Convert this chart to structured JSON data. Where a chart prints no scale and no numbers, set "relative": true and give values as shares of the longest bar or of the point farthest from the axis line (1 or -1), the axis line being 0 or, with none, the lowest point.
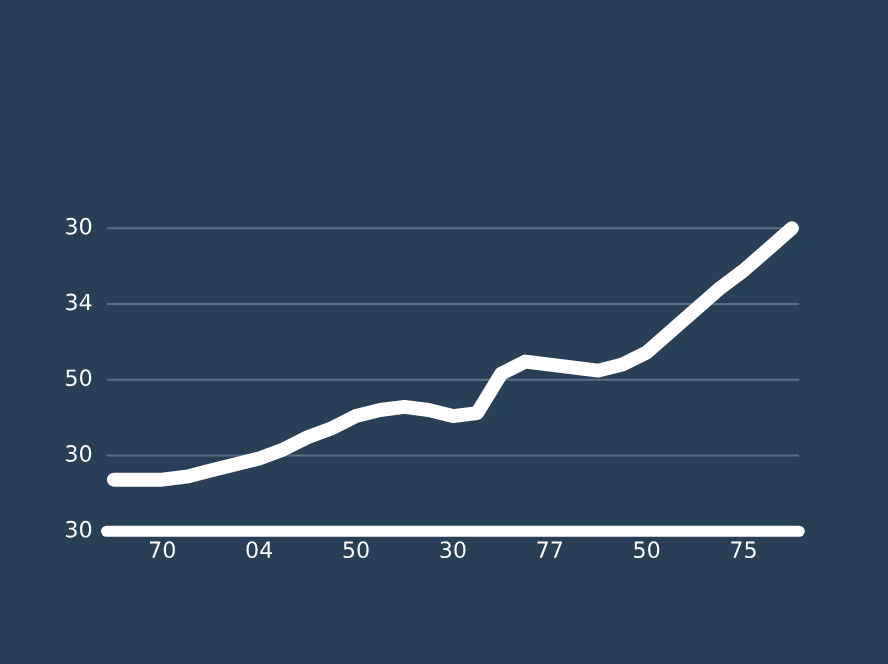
{
  "chart_data": {
    "type": "line",
    "relative": true,
    "categories": [
      null,
      null,
      "70",
      null,
      null,
      null,
      "04",
      null,
      null,
      null,
      "50",
      null,
      null,
      null,
      "30",
      null,
      null,
      null,
      "77",
      null,
      null,
      null,
      "50",
      null,
      null,
      null,
      "75",
      null,
      null
    ],
    "series": [
      {
        "color": "#ffffff",
        "values": [
          0.17,
          0.17,
          0.17,
          0.18,
          0.2,
          0.22,
          0.24,
          0.27,
          0.31,
          0.34,
          0.38,
          0.4,
          0.41,
          0.4,
          0.38,
          0.39,
          0.52,
          0.56,
          0.55,
          0.54,
          0.53,
          0.55,
          0.59,
          0.66,
          0.73,
          0.8,
          0.86,
          0.93,
          1
        ]
      }
    ],
    "ref_lines": [
      {
        "axis": "y",
        "value": 1,
        "color": "#5a7086"
      },
      {
        "axis": "y",
        "value": 0.75,
        "color": "#5a7086"
      },
      {
        "axis": "y",
        "value": 0.5,
        "color": "#5a7086"
      },
      {
        "axis": "y",
        "value": 0.25,
        "color": "#5a7086"
      }
    ],
    "annotations": [
      "30",
      "34",
      "50",
      "30",
      "30"
    ],
    "marker": "none",
    "line_style": "solid"
  }
}
